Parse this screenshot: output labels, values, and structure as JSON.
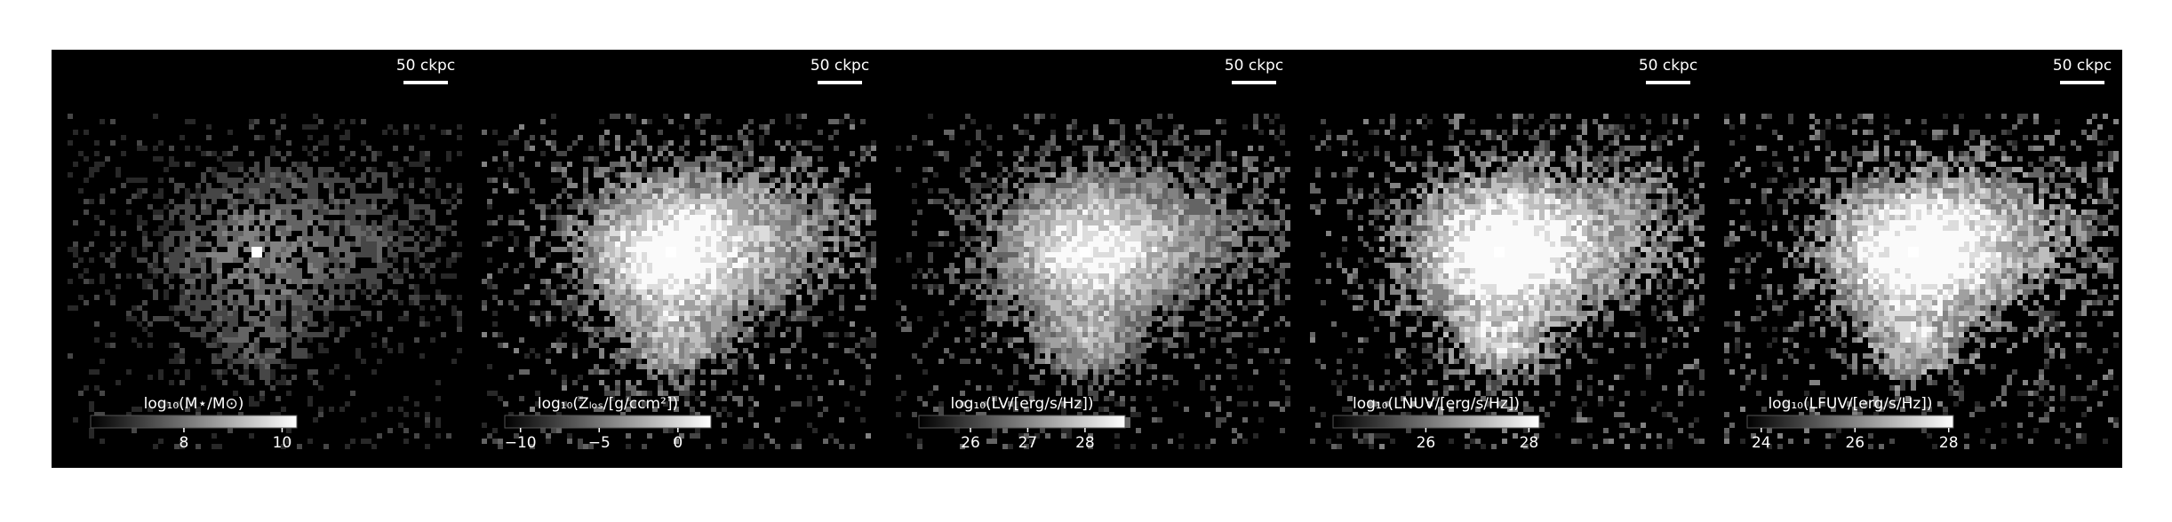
{
  "panels": [
    {
      "scale_label": "50 ckpc",
      "colorbar": {
        "label": "log₁₀(M⋆/M⊙)",
        "lim": [
          6.1,
          10.3
        ],
        "ticks": [
          8,
          10
        ]
      }
    },
    {
      "scale_label": "50 ckpc",
      "colorbar": {
        "label": "log₁₀(Zₗₒₛ/[g/ccm²])",
        "lim": [
          -11,
          2.1
        ],
        "ticks": [
          {
            "value": -10,
            "label": "−10"
          },
          {
            "value": -5,
            "label": "−5"
          },
          0
        ]
      }
    },
    {
      "scale_label": "50 ckpc",
      "colorbar": {
        "label": "log₁₀(LV/[erg/s/Hz])",
        "lim": [
          25.1,
          28.7
        ],
        "ticks": [
          26,
          27,
          28
        ]
      }
    },
    {
      "scale_label": "50 ckpc",
      "colorbar": {
        "label": "log₁₀(LNUV/[erg/s/Hz])",
        "lim": [
          24.2,
          28.2
        ],
        "ticks": [
          26,
          28
        ]
      }
    },
    {
      "scale_label": "50 ckpc",
      "colorbar": {
        "label": "log₁₀(LFUV/[erg/s/Hz])",
        "lim": [
          23.7,
          28.1
        ],
        "ticks": [
          24,
          26,
          28
        ]
      }
    }
  ]
}
